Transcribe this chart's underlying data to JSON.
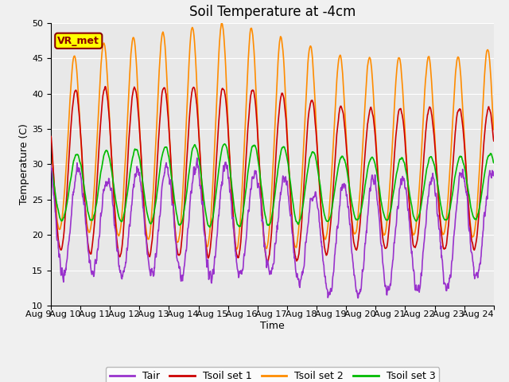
{
  "title": "Soil Temperature at -4cm",
  "xlabel": "Time",
  "ylabel": "Temperature (C)",
  "ylim": [
    10,
    50
  ],
  "xlim_days": [
    0,
    15
  ],
  "x_tick_labels": [
    "Aug 9",
    "Aug 10",
    "Aug 11",
    "Aug 12",
    "Aug 13",
    "Aug 14",
    "Aug 15",
    "Aug 16",
    "Aug 17",
    "Aug 18",
    "Aug 19",
    "Aug 20",
    "Aug 21",
    "Aug 22",
    "Aug 23",
    "Aug 24"
  ],
  "x_tick_positions": [
    0,
    1,
    2,
    3,
    4,
    5,
    6,
    7,
    8,
    9,
    10,
    11,
    12,
    13,
    14,
    15
  ],
  "yticks": [
    10,
    15,
    20,
    25,
    30,
    35,
    40,
    45,
    50
  ],
  "colors": {
    "Tair": "#9932CC",
    "Tsoil_set1": "#CC0000",
    "Tsoil_set2": "#FF8C00",
    "Tsoil_set3": "#00BB00"
  },
  "legend_labels": [
    "Tair",
    "Tsoil set 1",
    "Tsoil set 2",
    "Tsoil set 3"
  ],
  "vr_met_label": "VR_met",
  "fig_facecolor": "#F0F0F0",
  "ax_facecolor": "#E8E8E8",
  "grid_color": "#FFFFFF",
  "title_fontsize": 12,
  "axis_label_fontsize": 9,
  "tick_fontsize": 8,
  "legend_fontsize": 9,
  "line_width": 1.2,
  "vr_facecolor": "#FFFF00",
  "vr_edgecolor": "#8B0000",
  "vr_textcolor": "#8B0000"
}
